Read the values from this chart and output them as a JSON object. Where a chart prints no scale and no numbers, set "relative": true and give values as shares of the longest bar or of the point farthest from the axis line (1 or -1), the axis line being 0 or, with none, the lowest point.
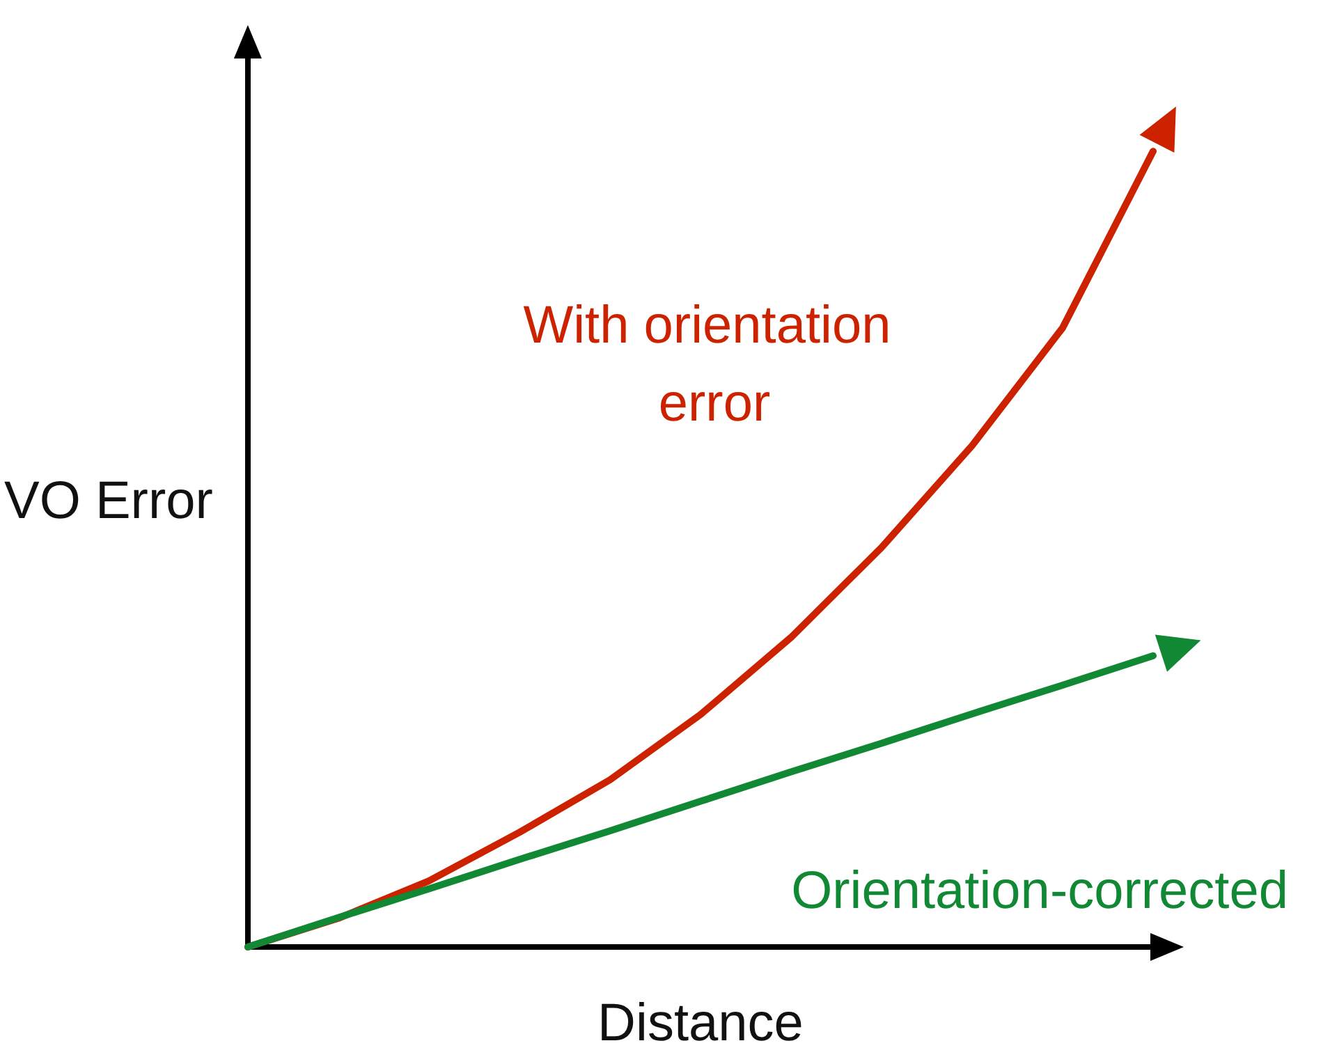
{
  "chart_data": {
    "type": "line",
    "relative": true,
    "xlabel": "Distance",
    "ylabel": "VO Error",
    "categories": [
      null,
      null,
      null,
      null,
      null,
      null,
      null,
      null,
      null,
      null,
      null
    ],
    "series": [
      {
        "name": "With orientation error",
        "color": "#cc2200",
        "values": [
          0,
          0.036,
          0.083,
          0.144,
          0.21,
          0.292,
          0.389,
          0.502,
          0.63,
          0.778,
          1
        ]
      },
      {
        "name": "Orientation-corrected",
        "color": "#118833",
        "values": [
          0,
          0.037,
          0.073,
          0.11,
          0.146,
          0.183,
          0.22,
          0.256,
          0.293,
          0.329,
          0.366
        ]
      }
    ],
    "grid": false,
    "legend": false,
    "marker": "none",
    "line_style": "solid"
  }
}
